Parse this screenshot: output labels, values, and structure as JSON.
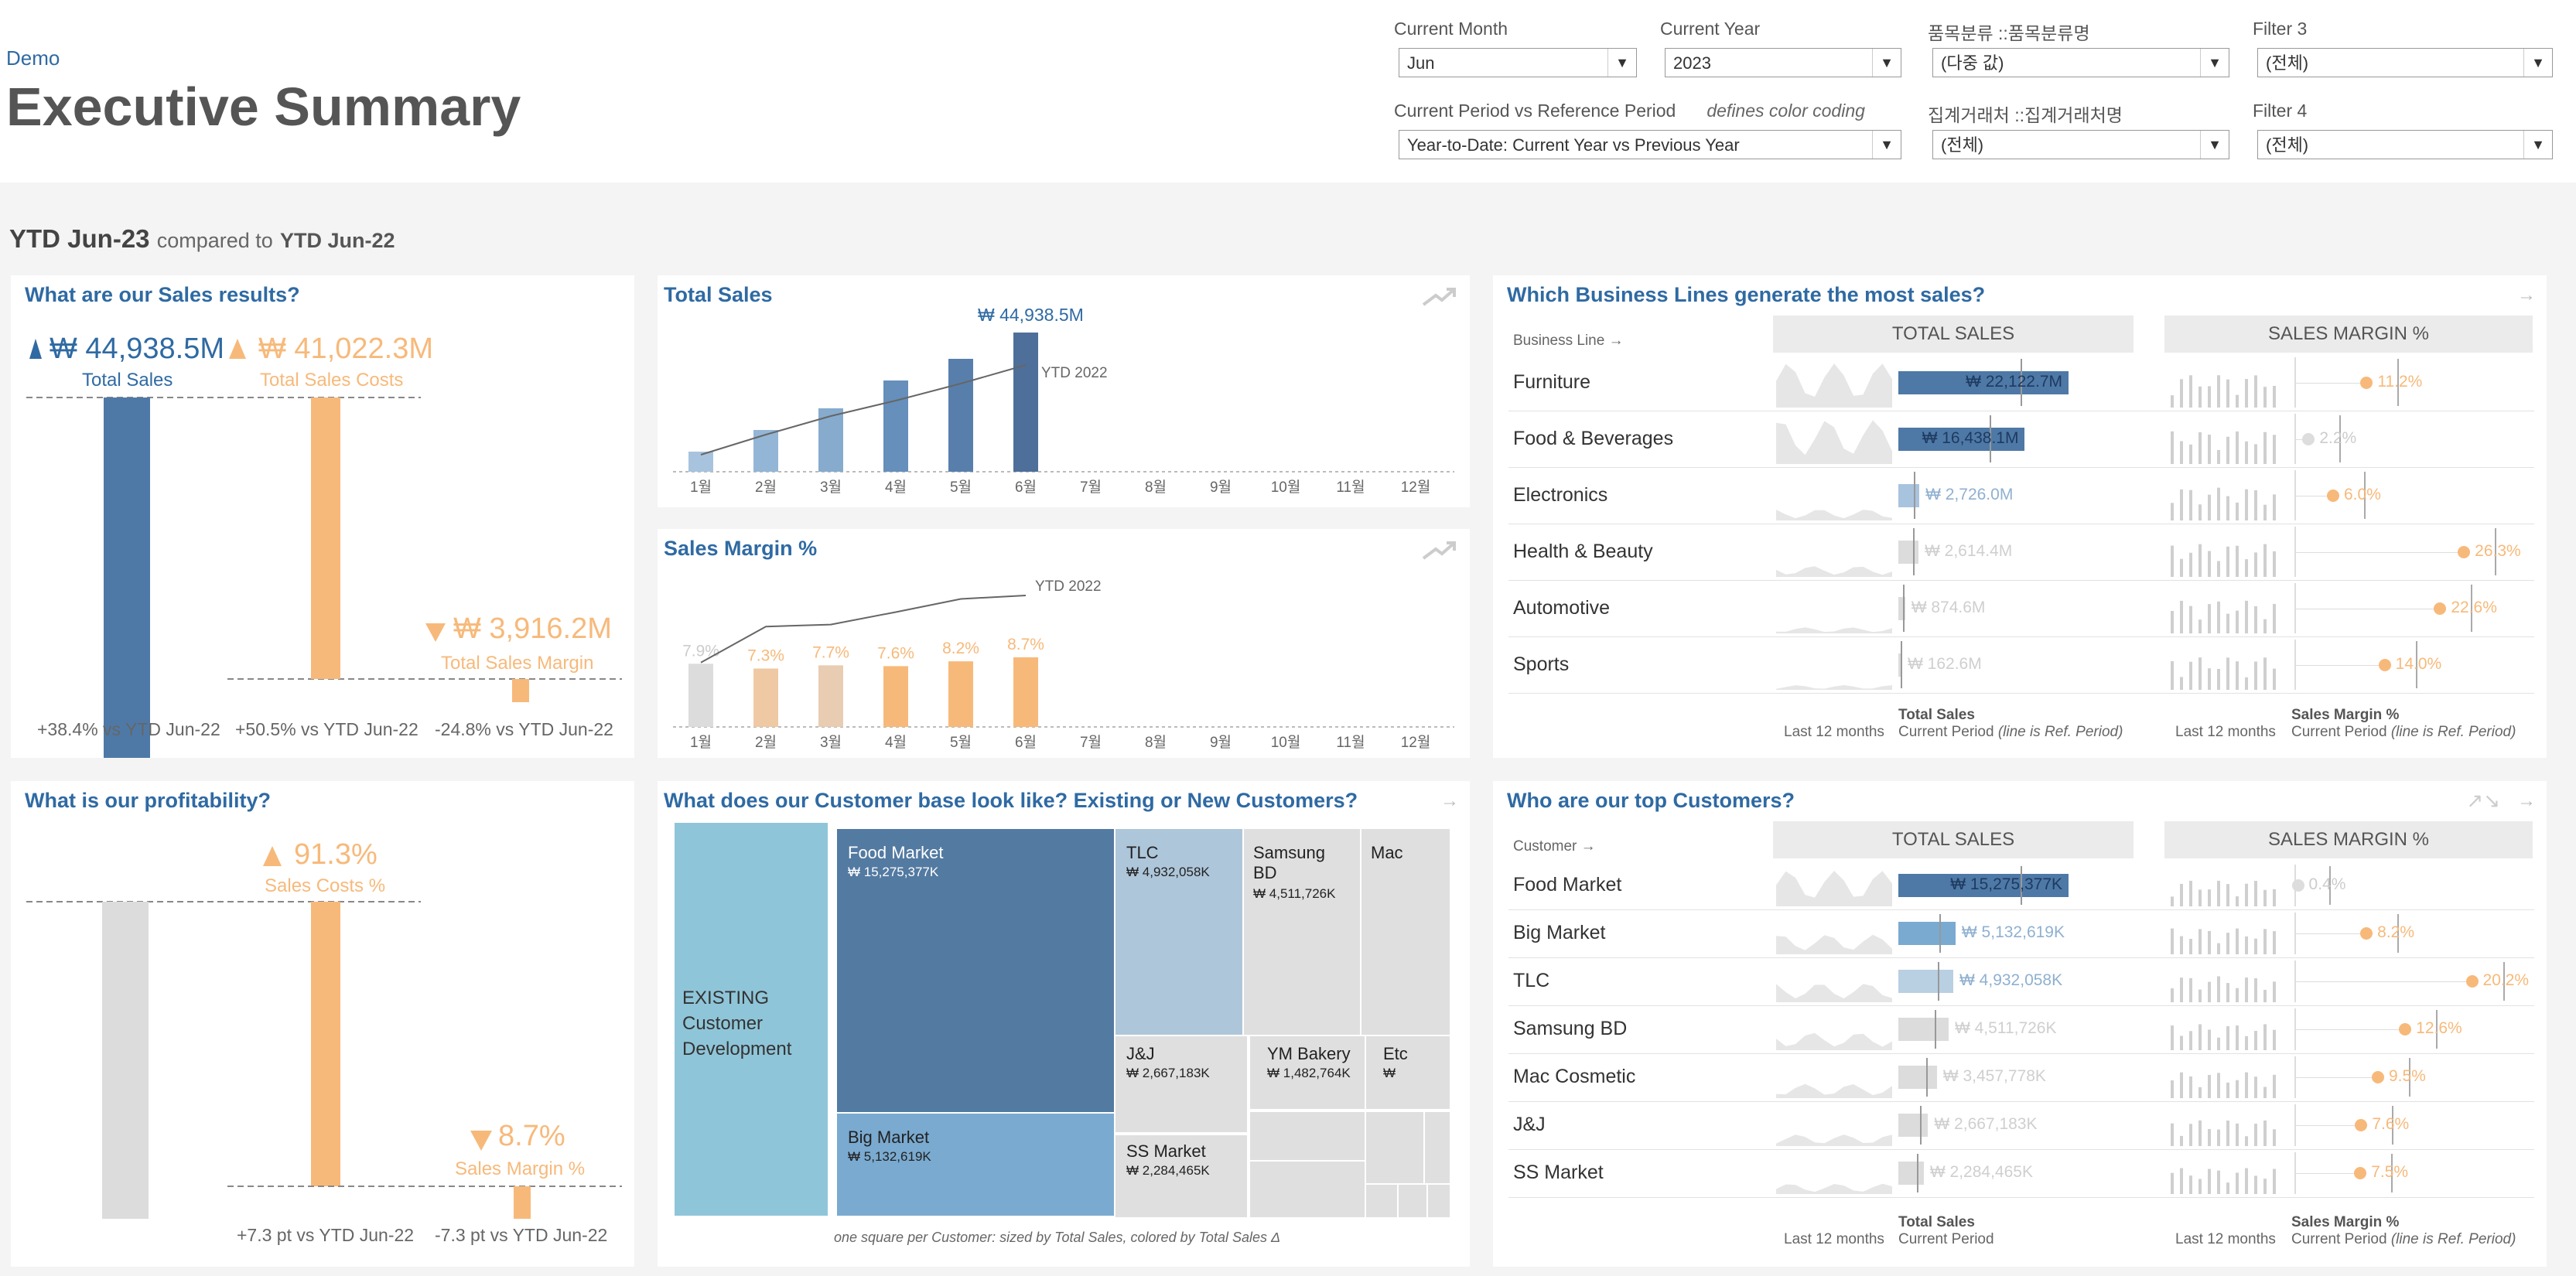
{
  "header": {
    "demo_label": "Demo",
    "title": "Executive Summary"
  },
  "filters": {
    "current_month": {
      "label": "Current Month",
      "value": "Jun"
    },
    "current_year": {
      "label": "Current Year",
      "value": "2023"
    },
    "category": {
      "label": "품목분류 ::품목분류명",
      "value": "(다중 값)"
    },
    "filter3": {
      "label": "Filter 3",
      "value": "(전체)"
    },
    "period": {
      "label": "Current Period vs Reference Period",
      "note": "defines color coding",
      "value": "Year-to-Date: Current Year vs Previous Year"
    },
    "account": {
      "label": "집계거래처 ::집계거래처명",
      "value": "(전체)"
    },
    "filter4": {
      "label": "Filter 4",
      "value": "(전체)"
    }
  },
  "period_line": {
    "current": "YTD Jun-23",
    "compared": "compared to",
    "reference": "YTD Jun-22"
  },
  "sales_results": {
    "title": "What are our Sales results?",
    "total_sales": {
      "value": "₩ 44,938.5M",
      "label": "Total Sales",
      "delta": "+38.4%",
      "vs": "vs YTD Jun-22"
    },
    "total_costs": {
      "value": "₩ 41,022.3M",
      "label": "Total Sales Costs",
      "delta": "+50.5%",
      "vs": "vs YTD Jun-22"
    },
    "total_margin": {
      "value": "₩ 3,916.2M",
      "label": "Total Sales Margin",
      "delta": "-24.8%",
      "vs": "vs YTD Jun-22"
    }
  },
  "profitability": {
    "title": "What is our profitability?",
    "costs_pct": {
      "value": "91.3%",
      "label": "Sales Costs %",
      "delta": "+7.3 pt",
      "vs": "vs YTD Jun-22"
    },
    "margin_pct": {
      "value": "8.7%",
      "label": "Sales Margin %",
      "delta": "-7.3 pt",
      "vs": "vs YTD Jun-22"
    }
  },
  "total_sales_chart": {
    "title": "Total Sales",
    "top_label": "₩ 44,938.5M",
    "ref_label": "YTD 2022",
    "months": [
      "1월",
      "2월",
      "3월",
      "4월",
      "5월",
      "6월",
      "7월",
      "8월",
      "9월",
      "10월",
      "11월",
      "12월"
    ]
  },
  "margin_chart": {
    "title": "Sales Margin %",
    "ref_label": "YTD 2022",
    "months": [
      "1월",
      "2월",
      "3월",
      "4월",
      "5월",
      "6월",
      "7월",
      "8월",
      "9월",
      "10월",
      "11월",
      "12월"
    ],
    "value_labels": [
      "7.9%",
      "7.3%",
      "7.7%",
      "7.6%",
      "8.2%",
      "8.7%"
    ]
  },
  "chart_data": [
    {
      "type": "bar",
      "title": "Total Sales",
      "categories": [
        "1월",
        "2월",
        "3월",
        "4월",
        "5월",
        "6월",
        "7월",
        "8월",
        "9월",
        "10월",
        "11월",
        "12월"
      ],
      "values": [
        1300,
        2700,
        4100,
        5900,
        7300,
        9000,
        null,
        null,
        null,
        null,
        null,
        null
      ],
      "reference_line": {
        "name": "YTD 2022",
        "values": [
          1100,
          2400,
          3600,
          4600,
          5700,
          6900
        ]
      }
    },
    {
      "type": "bar",
      "title": "Sales Margin %",
      "categories": [
        "1월",
        "2월",
        "3월",
        "4월",
        "5월",
        "6월",
        "7월",
        "8월",
        "9월",
        "10월",
        "11월",
        "12월"
      ],
      "values": [
        7.9,
        7.3,
        7.7,
        7.6,
        8.2,
        8.7,
        null,
        null,
        null,
        null,
        null,
        null
      ],
      "reference_line": {
        "name": "YTD 2022",
        "values": [
          9.3,
          14.5,
          14.8,
          16.6,
          18.5,
          19.0
        ]
      }
    },
    {
      "type": "bar",
      "title": "Business Lines",
      "categories": [
        "Furniture",
        "Food & Beverages",
        "Electronics",
        "Health & Beauty",
        "Automotive",
        "Sports"
      ],
      "series": [
        {
          "name": "Total Sales",
          "values": [
            22122.7,
            16438.1,
            2726.0,
            2614.4,
            874.6,
            162.6
          ]
        },
        {
          "name": "Sales Margin %",
          "values": [
            11.2,
            2.2,
            6.0,
            26.3,
            22.6,
            14.0
          ]
        }
      ]
    },
    {
      "type": "bar",
      "title": "Top Customers",
      "categories": [
        "Food Market",
        "Big Market",
        "TLC",
        "Samsung BD",
        "Mac Cosmetic",
        "J&J",
        "SS Market"
      ],
      "series": [
        {
          "name": "Total Sales",
          "values": [
            15275377,
            5132619,
            4932058,
            4511726,
            3457778,
            2667183,
            2284465
          ]
        },
        {
          "name": "Sales Margin %",
          "values": [
            0.4,
            8.2,
            20.2,
            12.6,
            9.5,
            7.6,
            7.5
          ]
        }
      ]
    }
  ],
  "business_lines": {
    "title": "Which Business Lines generate the most sales?",
    "dim_label": "Business Line →",
    "col_sales": "TOTAL SALES",
    "col_margin": "SALES MARGIN %",
    "rows": [
      {
        "name": "Furniture",
        "sales": "₩ 22,122.7M",
        "margin": "11.2%"
      },
      {
        "name": "Food & Beverages",
        "sales": "₩ 16,438.1M",
        "margin": "2.2%"
      },
      {
        "name": "Electronics",
        "sales": "₩ 2,726.0M",
        "margin": "6.0%"
      },
      {
        "name": "Health & Beauty",
        "sales": "₩ 2,614.4M",
        "margin": "26.3%"
      },
      {
        "name": "Automotive",
        "sales": "₩ 874.6M",
        "margin": "22.6%"
      },
      {
        "name": "Sports",
        "sales": "₩ 162.6M",
        "margin": "14.0%"
      }
    ],
    "footer": {
      "last12": "Last 12 months",
      "sales_title": "Total Sales",
      "current": "Current Period",
      "refnote": "(line is Ref. Period)",
      "margin_title": "Sales Margin %"
    }
  },
  "customer_base": {
    "title": "What does our Customer base look like? Existing or New Customers?",
    "existing": "EXISTING Customer Development",
    "caption": "one square per Customer: sized by Total Sales, colored by Total Sales Δ",
    "tiles": [
      {
        "name": "Food Market",
        "value": "₩ 15,275,377K"
      },
      {
        "name": "TLC",
        "value": "₩ 4,932,058K"
      },
      {
        "name": "Samsung BD",
        "value": "₩ 4,511,726K"
      },
      {
        "name": "Mac",
        "value": ""
      },
      {
        "name": "Big Market",
        "value": "₩ 5,132,619K"
      },
      {
        "name": "J&J",
        "value": "₩ 2,667,183K"
      },
      {
        "name": "YM Bakery",
        "value": "₩ 1,482,764K"
      },
      {
        "name": "Etc",
        "value": "₩"
      },
      {
        "name": "SS Market",
        "value": "₩ 2,284,465K"
      }
    ]
  },
  "top_customers": {
    "title": "Who are our top Customers?",
    "dim_label": "Customer →",
    "col_sales": "TOTAL SALES",
    "col_margin": "SALES MARGIN %",
    "rows": [
      {
        "name": "Food Market",
        "sales": "₩ 15,275,377K",
        "margin": "0.4%"
      },
      {
        "name": "Big Market",
        "sales": "₩ 5,132,619K",
        "margin": "8.2%"
      },
      {
        "name": "TLC",
        "sales": "₩ 4,932,058K",
        "margin": "20.2%"
      },
      {
        "name": "Samsung BD",
        "sales": "₩ 4,511,726K",
        "margin": "12.6%"
      },
      {
        "name": "Mac Cosmetic",
        "sales": "₩ 3,457,778K",
        "margin": "9.5%"
      },
      {
        "name": "J&J",
        "sales": "₩ 2,667,183K",
        "margin": "7.6%"
      },
      {
        "name": "SS Market",
        "sales": "₩ 2,284,465K",
        "margin": "7.5%"
      }
    ],
    "footer": {
      "last12": "Last 12 months",
      "sales_title": "Total Sales",
      "current": "Current Period",
      "refnote": "(line is Ref. Period)",
      "margin_title": "Sales Margin %"
    }
  },
  "colors": {
    "blue_dark": "#4e79a7",
    "blue_light": "#a0c0de",
    "orange": "#f7b97a",
    "grey": "#dcdcdc",
    "title_blue": "#2f6aa3",
    "teal": "#8fc5d8"
  }
}
